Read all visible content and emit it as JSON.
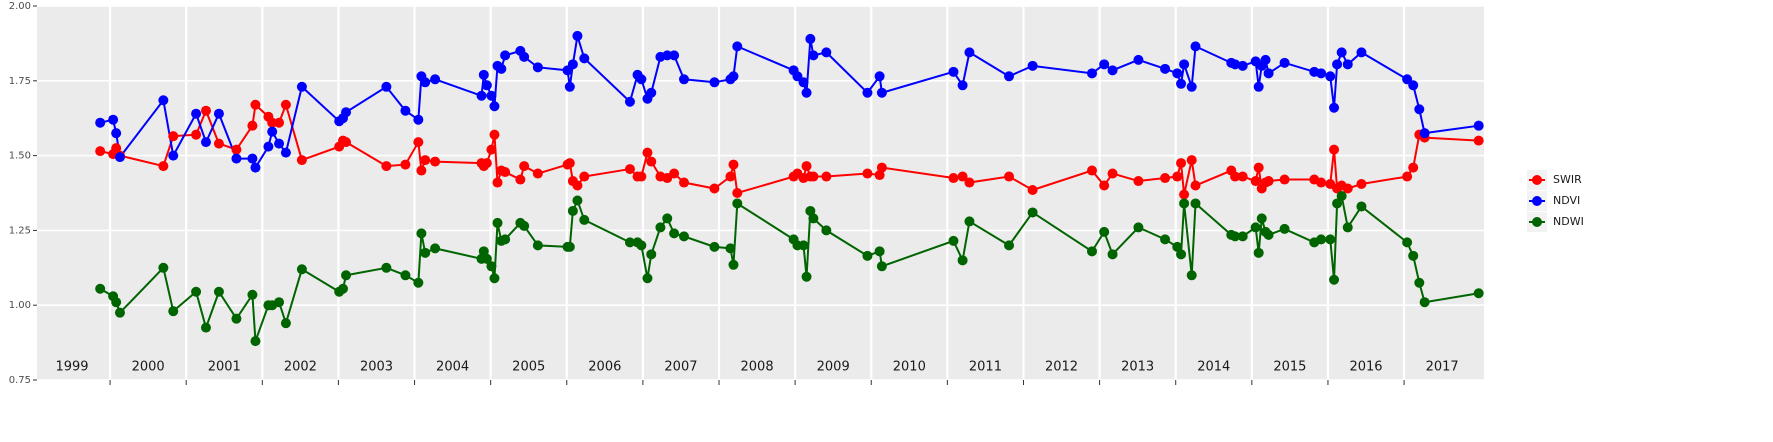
{
  "chart_data": {
    "type": "line",
    "x": [
      1999.87,
      2000.04,
      2000.08,
      2000.13,
      2000.7,
      2000.83,
      2001.13,
      2001.26,
      2001.43,
      2001.66,
      2001.87,
      2001.91,
      2002.08,
      2002.13,
      2002.22,
      2002.31,
      2002.52,
      2003.01,
      2003.06,
      2003.1,
      2003.63,
      2003.88,
      2004.05,
      2004.09,
      2004.14,
      2004.27,
      2004.88,
      2004.91,
      2004.95,
      2005.01,
      2005.05,
      2005.09,
      2005.14,
      2005.19,
      2005.39,
      2005.44,
      2005.62,
      2006.01,
      2006.04,
      2006.08,
      2006.14,
      2006.23,
      2006.83,
      2006.93,
      2006.98,
      2007.06,
      2007.11,
      2007.23,
      2007.32,
      2007.41,
      2007.54,
      2007.94,
      2008.15,
      2008.19,
      2008.24,
      2008.98,
      2009.03,
      2009.11,
      2009.15,
      2009.2,
      2009.24,
      2009.41,
      2009.95,
      2010.11,
      2010.14,
      2011.08,
      2011.2,
      2011.29,
      2011.81,
      2012.12,
      2012.9,
      2013.06,
      2013.17,
      2013.51,
      2013.86,
      2014.02,
      2014.07,
      2014.11,
      2014.21,
      2014.26,
      2014.73,
      2014.78,
      2014.88,
      2015.05,
      2015.09,
      2015.13,
      2015.18,
      2015.22,
      2015.43,
      2015.82,
      2015.91,
      2016.03,
      2016.08,
      2016.12,
      2016.18,
      2016.26,
      2016.44,
      2017.04,
      2017.12,
      2017.2,
      2017.27,
      2017.98
    ],
    "series": [
      {
        "name": "SWIR",
        "color": "#ff0000",
        "values": [
          1.515,
          1.505,
          1.525,
          1.5,
          1.465,
          1.565,
          1.57,
          1.65,
          1.54,
          1.52,
          1.6,
          1.67,
          1.63,
          1.61,
          1.61,
          1.67,
          1.485,
          1.53,
          1.55,
          1.545,
          1.465,
          1.47,
          1.545,
          1.45,
          1.485,
          1.48,
          1.475,
          1.465,
          1.475,
          1.52,
          1.57,
          1.41,
          1.45,
          1.445,
          1.42,
          1.465,
          1.44,
          1.47,
          1.475,
          1.415,
          1.4,
          1.43,
          1.455,
          1.43,
          1.43,
          1.51,
          1.48,
          1.43,
          1.425,
          1.44,
          1.41,
          1.39,
          1.43,
          1.47,
          1.375,
          1.43,
          1.44,
          1.425,
          1.465,
          1.43,
          1.43,
          1.43,
          1.44,
          1.435,
          1.46,
          1.425,
          1.43,
          1.41,
          1.43,
          1.385,
          1.45,
          1.4,
          1.44,
          1.415,
          1.425,
          1.43,
          1.475,
          1.37,
          1.485,
          1.4,
          1.45,
          1.43,
          1.43,
          1.415,
          1.46,
          1.39,
          1.41,
          1.415,
          1.42,
          1.42,
          1.41,
          1.405,
          1.52,
          1.39,
          1.4,
          1.39,
          1.405,
          1.43,
          1.46,
          1.57,
          1.56,
          1.55
        ]
      },
      {
        "name": "NDVI",
        "color": "#0000ff",
        "values": [
          1.61,
          1.62,
          1.575,
          1.495,
          1.685,
          1.5,
          1.64,
          1.545,
          1.64,
          1.49,
          1.49,
          1.46,
          1.53,
          1.58,
          1.54,
          1.51,
          1.73,
          1.615,
          1.625,
          1.645,
          1.73,
          1.65,
          1.62,
          1.765,
          1.745,
          1.755,
          1.7,
          1.77,
          1.735,
          1.7,
          1.665,
          1.8,
          1.79,
          1.835,
          1.85,
          1.83,
          1.795,
          1.785,
          1.73,
          1.805,
          1.9,
          1.825,
          1.68,
          1.77,
          1.755,
          1.69,
          1.71,
          1.83,
          1.835,
          1.835,
          1.755,
          1.745,
          1.755,
          1.765,
          1.865,
          1.785,
          1.765,
          1.745,
          1.71,
          1.89,
          1.835,
          1.845,
          1.71,
          1.765,
          1.71,
          1.78,
          1.735,
          1.845,
          1.765,
          1.8,
          1.775,
          1.805,
          1.785,
          1.82,
          1.79,
          1.775,
          1.74,
          1.805,
          1.73,
          1.865,
          1.81,
          1.805,
          1.8,
          1.815,
          1.73,
          1.8,
          1.82,
          1.775,
          1.81,
          1.78,
          1.775,
          1.765,
          1.66,
          1.805,
          1.845,
          1.805,
          1.845,
          1.755,
          1.735,
          1.655,
          1.575,
          1.6
        ]
      },
      {
        "name": "NDWI",
        "color": "#006400",
        "values": [
          1.055,
          1.03,
          1.01,
          0.975,
          1.125,
          0.98,
          1.045,
          0.925,
          1.045,
          0.955,
          1.035,
          0.88,
          1.0,
          1.0,
          1.01,
          0.94,
          1.12,
          1.045,
          1.055,
          1.1,
          1.125,
          1.1,
          1.075,
          1.24,
          1.175,
          1.19,
          1.155,
          1.18,
          1.155,
          1.13,
          1.09,
          1.275,
          1.215,
          1.22,
          1.275,
          1.265,
          1.2,
          1.195,
          1.195,
          1.315,
          1.35,
          1.285,
          1.21,
          1.21,
          1.2,
          1.09,
          1.17,
          1.26,
          1.29,
          1.24,
          1.23,
          1.195,
          1.19,
          1.135,
          1.34,
          1.22,
          1.2,
          1.2,
          1.095,
          1.315,
          1.29,
          1.25,
          1.165,
          1.18,
          1.13,
          1.215,
          1.15,
          1.28,
          1.2,
          1.31,
          1.18,
          1.245,
          1.17,
          1.26,
          1.22,
          1.195,
          1.17,
          1.34,
          1.1,
          1.34,
          1.235,
          1.23,
          1.23,
          1.26,
          1.175,
          1.29,
          1.245,
          1.235,
          1.255,
          1.21,
          1.22,
          1.22,
          1.085,
          1.34,
          1.365,
          1.26,
          1.33,
          1.21,
          1.165,
          1.075,
          1.01,
          1.04
        ]
      }
    ],
    "xlim": [
      1999.04,
      2018.05
    ],
    "xticks": [
      2000,
      2001,
      2002,
      2003,
      2004,
      2005,
      2006,
      2007,
      2008,
      2009,
      2010,
      2011,
      2012,
      2013,
      2014,
      2015,
      2016,
      2017
    ],
    "year_labels": [
      {
        "value": 1999.5,
        "label": "1999"
      },
      {
        "value": 2000.5,
        "label": "2000"
      },
      {
        "value": 2001.5,
        "label": "2001"
      },
      {
        "value": 2002.5,
        "label": "2002"
      },
      {
        "value": 2003.5,
        "label": "2003"
      },
      {
        "value": 2004.5,
        "label": "2004"
      },
      {
        "value": 2005.5,
        "label": "2005"
      },
      {
        "value": 2006.5,
        "label": "2006"
      },
      {
        "value": 2007.5,
        "label": "2007"
      },
      {
        "value": 2008.5,
        "label": "2008"
      },
      {
        "value": 2009.5,
        "label": "2009"
      },
      {
        "value": 2010.5,
        "label": "2010"
      },
      {
        "value": 2011.5,
        "label": "2011"
      },
      {
        "value": 2012.5,
        "label": "2012"
      },
      {
        "value": 2013.5,
        "label": "2013"
      },
      {
        "value": 2014.5,
        "label": "2014"
      },
      {
        "value": 2015.5,
        "label": "2015"
      },
      {
        "value": 2016.5,
        "label": "2016"
      },
      {
        "value": 2017.5,
        "label": "2017"
      }
    ],
    "ylim": [
      0.75,
      2.0
    ],
    "yticks": [
      0.75,
      {
        "value": 1,
        "label": "1.00"
      },
      1.25,
      {
        "value": 1.5,
        "label": "1.50"
      },
      1.75,
      {
        "value": 2,
        "label": "2.00"
      }
    ],
    "grid": true,
    "legend": "right"
  }
}
